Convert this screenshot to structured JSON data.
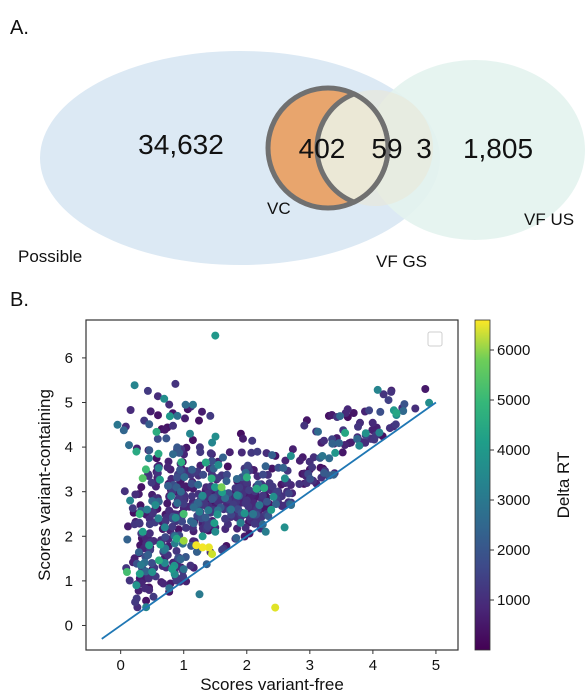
{
  "chart_data": [
    {
      "type": "venn",
      "panel_label": "A.",
      "sets": [
        {
          "name": "Possible",
          "color": "#dce9f4"
        },
        {
          "name": "VF US",
          "color": "#e3f3ee"
        },
        {
          "name": "VC",
          "color": "#e8a56d"
        },
        {
          "name": "VF GS",
          "color": "#ebe8d6"
        }
      ],
      "region_counts": [
        {
          "label": "Possible only",
          "value": "34,632"
        },
        {
          "label": "VC",
          "value": "402"
        },
        {
          "label": "VC and VF GS",
          "value": "59"
        },
        {
          "label": "VF GS only",
          "value": "3"
        },
        {
          "label": "VF US only",
          "value": "1,805"
        }
      ]
    },
    {
      "type": "scatter",
      "panel_label": "B.",
      "xlabel": "Scores variant-free",
      "ylabel": "Scores variant-containing",
      "xlim": [
        -0.55,
        5.35
      ],
      "ylim": [
        -0.55,
        6.85
      ],
      "xticks": [
        0,
        1,
        2,
        3,
        4,
        5
      ],
      "yticks": [
        0,
        1,
        2,
        3,
        4,
        5,
        6
      ],
      "grid": false,
      "legend": "empty box, top-right",
      "colormap": "viridis",
      "colorbar": {
        "label": "Delta RT",
        "range": [
          0,
          6600
        ],
        "ticks": [
          1000,
          2000,
          3000,
          4000,
          5000,
          6000
        ]
      },
      "reference_line": {
        "x": [
          -0.3,
          5.0
        ],
        "y": [
          -0.3,
          5.0
        ],
        "color": "#1f77b4"
      },
      "seed": 7,
      "points": [
        {
          "x": 1.5,
          "y": 6.5,
          "c": 3500
        },
        {
          "x": 2.45,
          "y": 0.4,
          "c": 6300
        },
        {
          "x": 1.25,
          "y": 0.7,
          "c": 2700
        },
        {
          "x": -0.05,
          "y": 4.5,
          "c": 2600
        },
        {
          "x": 1.6,
          "y": 3.1,
          "c": 5200
        },
        {
          "x": 1.3,
          "y": 1.75,
          "c": 6500
        },
        {
          "x": 1.4,
          "y": 1.75,
          "c": 6400
        },
        {
          "x": 1.45,
          "y": 1.6,
          "c": 6100
        },
        {
          "x": 1.0,
          "y": 1.9,
          "c": 5600
        },
        {
          "x": 1.2,
          "y": 1.8,
          "c": 6500
        },
        {
          "x": 0.35,
          "y": 3.3,
          "c": 4800
        },
        {
          "x": 0.4,
          "y": 3.5,
          "c": 4500
        },
        {
          "x": 0.6,
          "y": 3.85,
          "c": 4000
        },
        {
          "x": 0.9,
          "y": 4.7,
          "c": 2500
        },
        {
          "x": 1.1,
          "y": 4.3,
          "c": 3000
        },
        {
          "x": 0.3,
          "y": 2.5,
          "c": 4300
        },
        {
          "x": 1.0,
          "y": 2.5,
          "c": 4600
        },
        {
          "x": 0.5,
          "y": 1.2,
          "c": 3300
        },
        {
          "x": 0.7,
          "y": 1.4,
          "c": 3100
        },
        {
          "x": 2.3,
          "y": 2.1,
          "c": 2800
        },
        {
          "x": 1.9,
          "y": 2.3,
          "c": 2900
        },
        {
          "x": 2.6,
          "y": 2.2,
          "c": 3300
        },
        {
          "x": 0.1,
          "y": 1.2,
          "c": 4600
        },
        {
          "x": 0.45,
          "y": 1.8,
          "c": 3500
        },
        {
          "x": 0.8,
          "y": 2.9,
          "c": 3000
        },
        {
          "x": 1.75,
          "y": 2.6,
          "c": 2500
        },
        {
          "x": 1.25,
          "y": 2.55,
          "c": 2800
        },
        {
          "x": 0.55,
          "y": 2.7,
          "c": 3200
        },
        {
          "x": 0.35,
          "y": 2.1,
          "c": 3700
        },
        {
          "x": 2.1,
          "y": 2.5,
          "c": 2600
        },
        {
          "x": 1.55,
          "y": 3.6,
          "c": 3200
        },
        {
          "x": 2.7,
          "y": 3.8,
          "c": 3300
        },
        {
          "x": 2.2,
          "y": 2.7,
          "c": 2600
        },
        {
          "x": 3.2,
          "y": 3.8,
          "c": 2600
        },
        {
          "x": 0.6,
          "y": 2.4,
          "c": 2900
        },
        {
          "x": 1.3,
          "y": 2.0,
          "c": 3500
        },
        {
          "x": 1.5,
          "y": 2.1,
          "c": 3200
        },
        {
          "x": 0.7,
          "y": 2.2,
          "c": 3000
        },
        {
          "x": 0.25,
          "y": 0.9,
          "c": 3400
        },
        {
          "x": 0.15,
          "y": 2.8,
          "c": 3000
        },
        {
          "x": 1.45,
          "y": 4.1,
          "c": 3000
        },
        {
          "x": 0.25,
          "y": 3.9,
          "c": 4000
        }
      ],
      "clusters": [
        {
          "cx": 1.3,
          "cy": 2.7,
          "sx": 0.45,
          "sy": 0.65,
          "n": 210
        },
        {
          "cx": 2.0,
          "cy": 2.75,
          "sx": 0.35,
          "sy": 0.4,
          "n": 120
        },
        {
          "cx": 0.6,
          "cy": 2.0,
          "sx": 0.3,
          "sy": 0.75,
          "n": 90
        },
        {
          "cx": 0.85,
          "cy": 3.7,
          "sx": 0.45,
          "sy": 0.65,
          "n": 60
        },
        {
          "cx": 2.9,
          "cy": 3.4,
          "sx": 0.45,
          "sy": 0.35,
          "n": 60
        },
        {
          "cx": 3.7,
          "cy": 4.3,
          "sx": 0.35,
          "sy": 0.3,
          "n": 45
        },
        {
          "cx": 4.4,
          "cy": 5.2,
          "sx": 0.3,
          "sy": 0.3,
          "n": 12
        },
        {
          "cx": 0.95,
          "cy": 4.9,
          "sx": 0.25,
          "sy": 0.3,
          "n": 14
        },
        {
          "cx": 0.5,
          "cy": 1.1,
          "sx": 0.25,
          "sy": 0.4,
          "n": 40
        }
      ]
    }
  ]
}
